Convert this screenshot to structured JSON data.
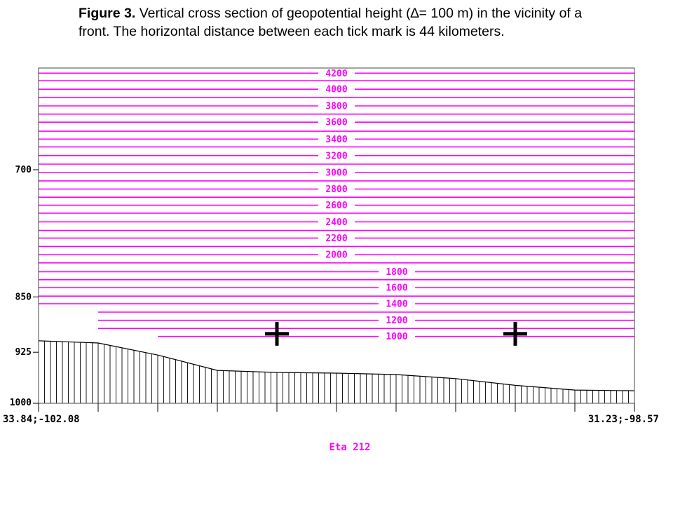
{
  "caption": {
    "label": "Figure 3.",
    "text": "Vertical cross section of geopotential height (∆= 100 m) in the vicinity of a front. The horizontal distance between each tick mark is 44 kilometers."
  },
  "colors": {
    "contour": "#ff00ff",
    "axis": "#000000",
    "terrain": "#000000"
  },
  "chart_data": {
    "type": "line",
    "title": "Eta 212",
    "y_axis": {
      "label": "",
      "scale": "log-pressure",
      "ticks": [
        700,
        850,
        925,
        1000
      ],
      "range": [
        1000,
        600
      ]
    },
    "x_axis": {
      "label": "",
      "left_label": "33.84;-102.08",
      "right_label": "31.23;-98.57",
      "tick_count": 11,
      "tick_spacing_km": 44
    },
    "contour_interval_m": 100,
    "contours": [
      {
        "height": 1000,
        "labeled": true,
        "start_tick": 2,
        "pressure": 903
      },
      {
        "height": 1100,
        "labeled": false,
        "start_tick": 1,
        "pressure": 892
      },
      {
        "height": 1200,
        "labeled": true,
        "start_tick": 1,
        "pressure": 881
      },
      {
        "height": 1300,
        "labeled": false,
        "start_tick": 1,
        "pressure": 870
      },
      {
        "height": 1400,
        "labeled": true,
        "start_tick": 0,
        "pressure": 859
      },
      {
        "height": 1500,
        "labeled": false,
        "start_tick": 0,
        "pressure": 849
      },
      {
        "height": 1600,
        "labeled": true,
        "start_tick": 0,
        "pressure": 838
      },
      {
        "height": 1700,
        "labeled": false,
        "start_tick": 0,
        "pressure": 828
      },
      {
        "height": 1800,
        "labeled": true,
        "start_tick": 0,
        "pressure": 818
      },
      {
        "height": 1900,
        "labeled": false,
        "start_tick": 0,
        "pressure": 807
      },
      {
        "height": 2000,
        "labeled": true,
        "start_tick": 0,
        "pressure": 797
      },
      {
        "height": 2100,
        "labeled": false,
        "start_tick": 0,
        "pressure": 787
      },
      {
        "height": 2200,
        "labeled": true,
        "start_tick": 0,
        "pressure": 777
      },
      {
        "height": 2300,
        "labeled": false,
        "start_tick": 0,
        "pressure": 768
      },
      {
        "height": 2400,
        "labeled": true,
        "start_tick": 0,
        "pressure": 758
      },
      {
        "height": 2500,
        "labeled": false,
        "start_tick": 0,
        "pressure": 748
      },
      {
        "height": 2600,
        "labeled": true,
        "start_tick": 0,
        "pressure": 739
      },
      {
        "height": 2700,
        "labeled": false,
        "start_tick": 0,
        "pressure": 730
      },
      {
        "height": 2800,
        "labeled": true,
        "start_tick": 0,
        "pressure": 721
      },
      {
        "height": 2900,
        "labeled": false,
        "start_tick": 0,
        "pressure": 712
      },
      {
        "height": 3000,
        "labeled": true,
        "start_tick": 0,
        "pressure": 703
      },
      {
        "height": 3100,
        "labeled": false,
        "start_tick": 0,
        "pressure": 694
      },
      {
        "height": 3200,
        "labeled": true,
        "start_tick": 0,
        "pressure": 685
      },
      {
        "height": 3300,
        "labeled": false,
        "start_tick": 0,
        "pressure": 676
      },
      {
        "height": 3400,
        "labeled": true,
        "start_tick": 0,
        "pressure": 668
      },
      {
        "height": 3500,
        "labeled": false,
        "start_tick": 0,
        "pressure": 660
      },
      {
        "height": 3600,
        "labeled": true,
        "start_tick": 0,
        "pressure": 651
      },
      {
        "height": 3700,
        "labeled": false,
        "start_tick": 0,
        "pressure": 643
      },
      {
        "height": 3800,
        "labeled": true,
        "start_tick": 0,
        "pressure": 635
      },
      {
        "height": 3900,
        "labeled": false,
        "start_tick": 0,
        "pressure": 627
      },
      {
        "height": 4000,
        "labeled": true,
        "start_tick": 0,
        "pressure": 619
      },
      {
        "height": 4100,
        "labeled": false,
        "start_tick": 0,
        "pressure": 611
      },
      {
        "height": 4200,
        "labeled": true,
        "start_tick": 0,
        "pressure": 604
      }
    ],
    "terrain_surface": {
      "x_tick": [
        0,
        1,
        2,
        3,
        4,
        5,
        6,
        7,
        8,
        9,
        10
      ],
      "pressure": [
        909,
        912,
        929,
        951,
        954,
        955,
        957,
        963,
        973,
        980,
        981
      ]
    },
    "markers": [
      {
        "symbol": "+",
        "x_tick": 4,
        "pressure": 908
      },
      {
        "symbol": "+",
        "x_tick": 8,
        "pressure": 908
      }
    ]
  }
}
